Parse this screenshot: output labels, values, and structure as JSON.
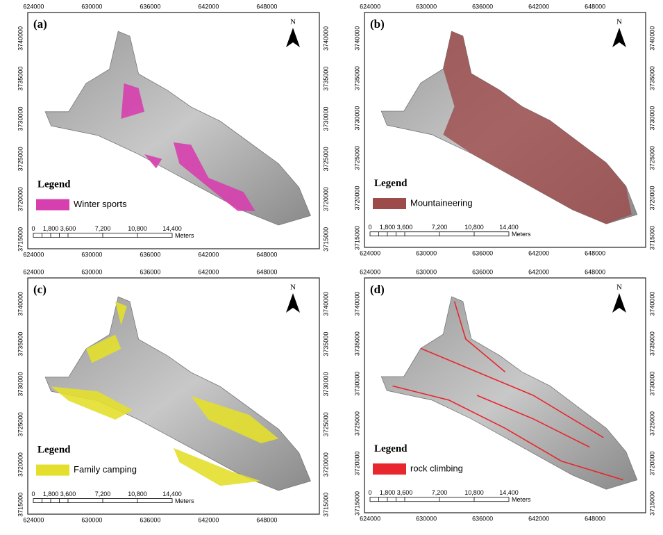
{
  "panels": [
    {
      "label": "(a)",
      "north": "N",
      "legend_title": "Legend",
      "legend_item": "Winter sports",
      "legend_color": "#d63fae"
    },
    {
      "label": "(b)",
      "north": "N",
      "legend_title": "Legend",
      "legend_item": "Mountaineering",
      "legend_color": "#9c4a4a"
    },
    {
      "label": "(c)",
      "north": "N",
      "legend_title": "Legend",
      "legend_item": "Family camping",
      "legend_color": "#e3df2c"
    },
    {
      "label": "(d)",
      "north": "N",
      "legend_title": "Legend",
      "legend_item": "rock climbing",
      "legend_color": "#e8262d"
    }
  ],
  "x_labels": [
    "624000",
    "630000",
    "636000",
    "642000",
    "648000"
  ],
  "y_labels": [
    "3715000",
    "3720000",
    "3725000",
    "3730000",
    "3735000",
    "3740000"
  ],
  "scale_labels": [
    "0",
    "1,800",
    "3,600",
    "7,200",
    "10,800",
    "14,400"
  ],
  "scale_unit": "Meters"
}
